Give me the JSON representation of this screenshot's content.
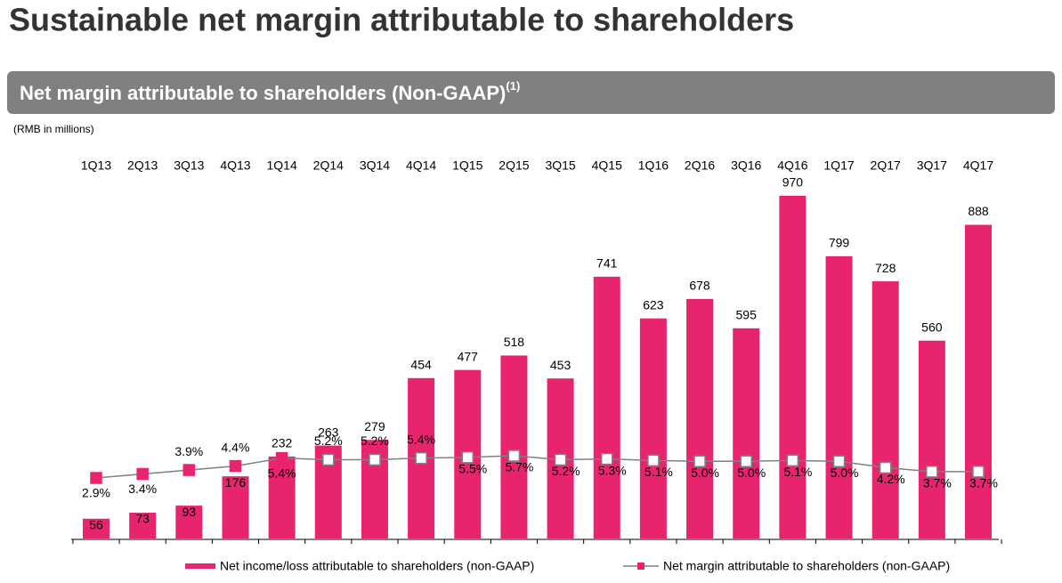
{
  "chart_data": {
    "type": "bar",
    "title": "Sustainable net margin attributable to shareholders",
    "subtitle": "Net margin attributable to shareholders (Non-GAAP)",
    "subtitle_note": "(1)",
    "unit_note": "(RMB in millions)",
    "categories": [
      "1Q13",
      "2Q13",
      "3Q13",
      "4Q13",
      "1Q14",
      "2Q14",
      "3Q14",
      "4Q14",
      "1Q15",
      "2Q15",
      "3Q15",
      "4Q15",
      "1Q16",
      "2Q16",
      "3Q16",
      "4Q16",
      "1Q17",
      "2Q17",
      "3Q17",
      "4Q17"
    ],
    "series": [
      {
        "name": "Net income/loss attributable to shareholders (non-GAAP)",
        "color": "#e8246f",
        "values": [
          56,
          73,
          93,
          176,
          232,
          263,
          279,
          454,
          477,
          518,
          453,
          741,
          623,
          678,
          595,
          970,
          799,
          728,
          560,
          888
        ]
      },
      {
        "name": "Net margin attributable to shareholders (non-GAAP)",
        "color": "#808080",
        "type": "line",
        "axis": "y2",
        "marker_colors": [
          "#e8246f",
          "#e8246f",
          "#e8246f",
          "#e8246f",
          "#e8246f",
          "#ffffff",
          "#ffffff",
          "#ffffff",
          "#ffffff",
          "#ffffff",
          "#ffffff",
          "#ffffff",
          "#ffffff",
          "#ffffff",
          "#ffffff",
          "#ffffff",
          "#ffffff",
          "#ffffff",
          "#ffffff",
          "#ffffff"
        ],
        "values": [
          2.9,
          3.4,
          3.9,
          4.4,
          5.4,
          5.2,
          5.2,
          5.4,
          5.5,
          5.7,
          5.2,
          5.3,
          5.1,
          5.0,
          5.0,
          5.1,
          5.0,
          4.2,
          3.7,
          3.7
        ],
        "value_labels": [
          "2.9%",
          "3.4%",
          "3.9%",
          "4.4%",
          "5.4%",
          "5.2%",
          "5.2%",
          "5.4%",
          "5.5%",
          "5.7%",
          "5.2%",
          "5.3%",
          "5.1%",
          "5.0%",
          "5.0%",
          "5.1%",
          "5.0%",
          "4.2%",
          "3.7%",
          "3.7%"
        ]
      }
    ]
  }
}
